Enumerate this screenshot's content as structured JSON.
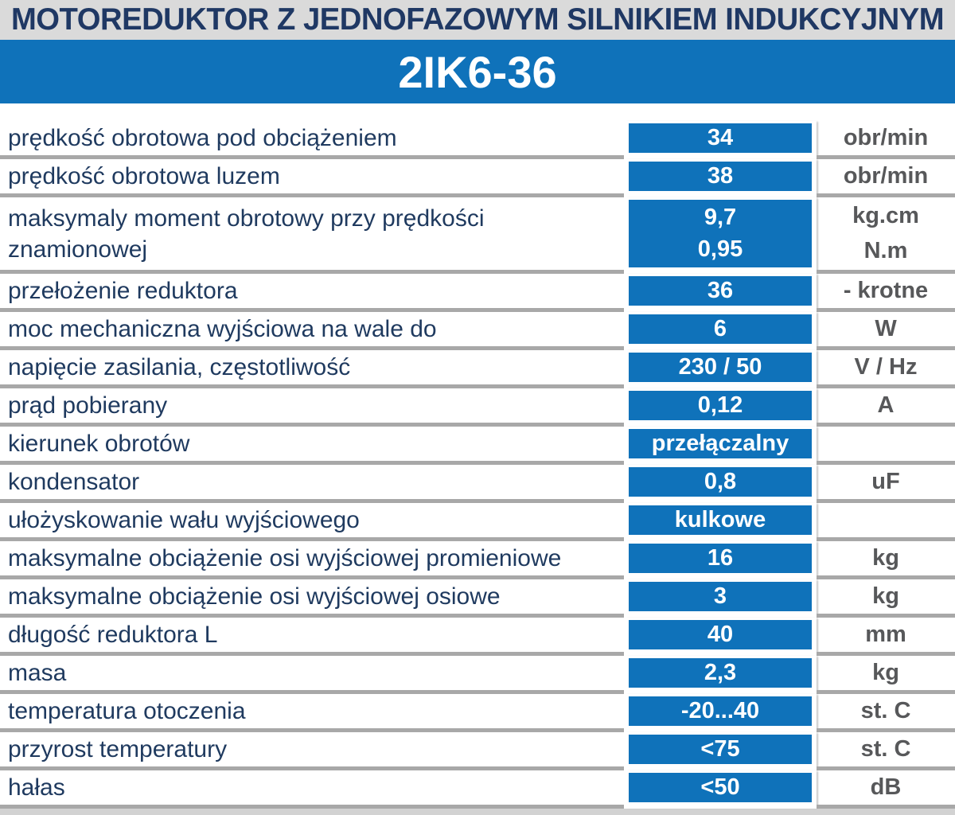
{
  "header": {
    "title": "MOTOREDUKTOR Z JEDNOFAZOWYM SILNIKIEM INDUKCYJNYM",
    "model": "2IK6-36"
  },
  "colors": {
    "accent_blue": "#0f72ba",
    "navy_text": "#1f3864",
    "unit_gray": "#57585a",
    "header_gray": "#dadada",
    "separator_gray": "#a8a8a8"
  },
  "table": {
    "rows": [
      {
        "label": "prędkość obrotowa pod obciążeniem",
        "value": "34",
        "unit": "obr/min"
      },
      {
        "label": "prędkość obrotowa luzem",
        "value": "38",
        "unit": "obr/min"
      },
      {
        "label": "maksymaly moment obrotowy przy prędkości\nznamionowej",
        "value": "9,7\n0,95",
        "unit": "kg.cm\nN.m"
      },
      {
        "label": "przełożenie reduktora",
        "value": "36",
        "unit": "- krotne"
      },
      {
        "label": "moc mechaniczna wyjściowa na  wale do",
        "value": "6",
        "unit": "W"
      },
      {
        "label": "napięcie zasilania, częstotliwość",
        "value": "230 / 50",
        "unit": "V / Hz"
      },
      {
        "label": "prąd pobierany",
        "value": "0,12",
        "unit": "A"
      },
      {
        "label": "kierunek obrotów",
        "value": "przełączalny",
        "unit": ""
      },
      {
        "label": "kondensator",
        "value": "0,8",
        "unit": "uF"
      },
      {
        "label": "ułożyskowanie wału wyjściowego",
        "value": "kulkowe",
        "unit": ""
      },
      {
        "label": "maksymalne obciążenie osi wyjściowej promieniowe",
        "value": "16",
        "unit": "kg"
      },
      {
        "label": "maksymalne obciążenie osi wyjściowej  osiowe",
        "value": "3",
        "unit": "kg"
      },
      {
        "label": "długość reduktora L",
        "value": "40",
        "unit": "mm"
      },
      {
        "label": "masa",
        "value": "2,3",
        "unit": "kg"
      },
      {
        "label": "temperatura otoczenia",
        "value": "-20...40",
        "unit": "st. C"
      },
      {
        "label": "przyrost temperatury",
        "value": "<75",
        "unit": "st. C"
      },
      {
        "label": "hałas",
        "value": "<50",
        "unit": "dB"
      }
    ]
  }
}
